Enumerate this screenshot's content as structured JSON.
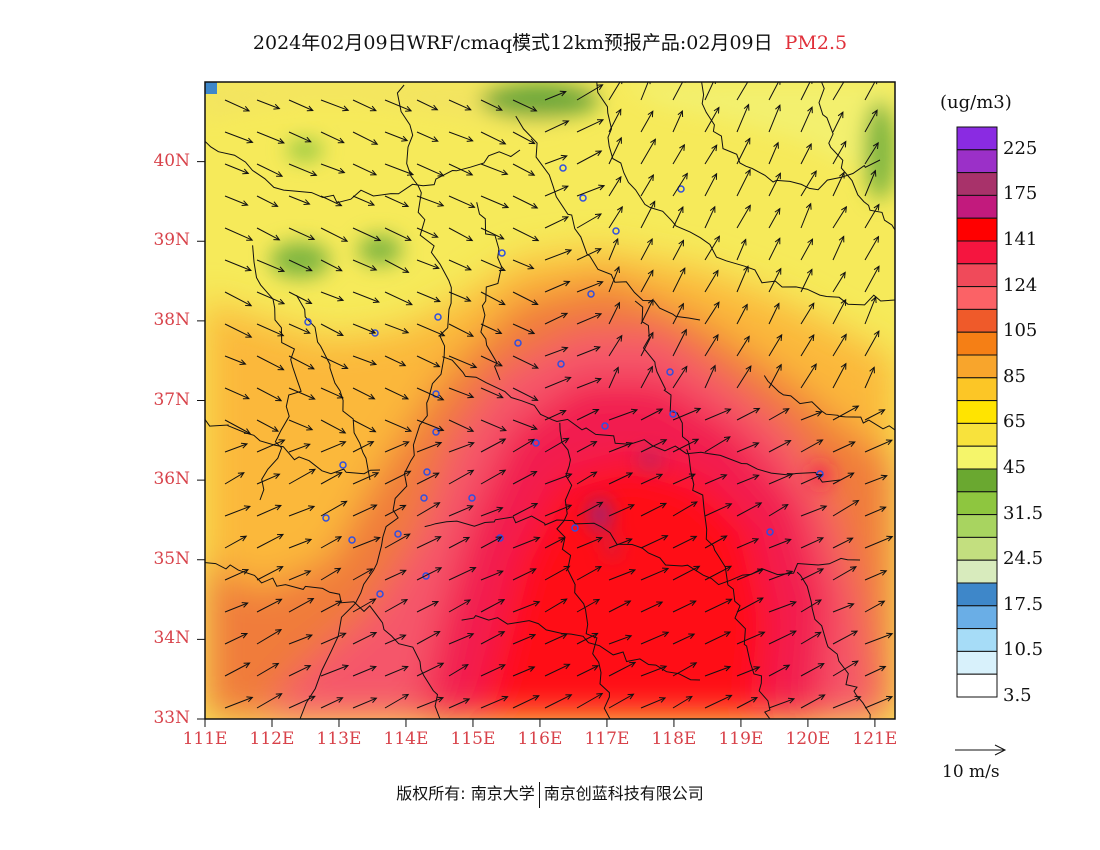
{
  "title": {
    "main": "2024年02月09日WRF/cmaq模式12km预报产品:02月09日",
    "pollutant": "PM2.5"
  },
  "map": {
    "lon_range": [
      111,
      121.3
    ],
    "lat_range": [
      33,
      41
    ],
    "lat_labels": [
      "40N",
      "39N",
      "38N",
      "37N",
      "36N",
      "35N",
      "34N",
      "33N"
    ],
    "lon_labels": [
      "111E",
      "112E",
      "113E",
      "114E",
      "115E",
      "116E",
      "117E",
      "118E",
      "119E",
      "120E",
      "121E"
    ]
  },
  "legend": {
    "unit": "(ug/m3)",
    "colors": [
      "#8a2be2",
      "#9b30c8",
      "#a8326a",
      "#c21a7d",
      "#ff0000",
      "#f5153f",
      "#f04a5a",
      "#fb6266",
      "#ef5a2a",
      "#f57f15",
      "#f8a52c",
      "#fcc626",
      "#ffe400",
      "#f8e23c",
      "#f5f56a",
      "#6aa830",
      "#8ec63f",
      "#a8d460",
      "#c3df7f",
      "#d8ebbd",
      "#3e87c9",
      "#6aaee6",
      "#a6dcf7",
      "#d8f1fb",
      "#ffffff"
    ],
    "labels": [
      "225",
      "175",
      "141",
      "124",
      "105",
      "85",
      "65",
      "45",
      "31.5",
      "24.5",
      "17.5",
      "10.5",
      "3.5"
    ]
  },
  "wind_reference": {
    "label": "10 m/s"
  },
  "footer": {
    "copyright": "版权所有: 南京大学",
    "company": "南京创蓝科技有限公司"
  }
}
